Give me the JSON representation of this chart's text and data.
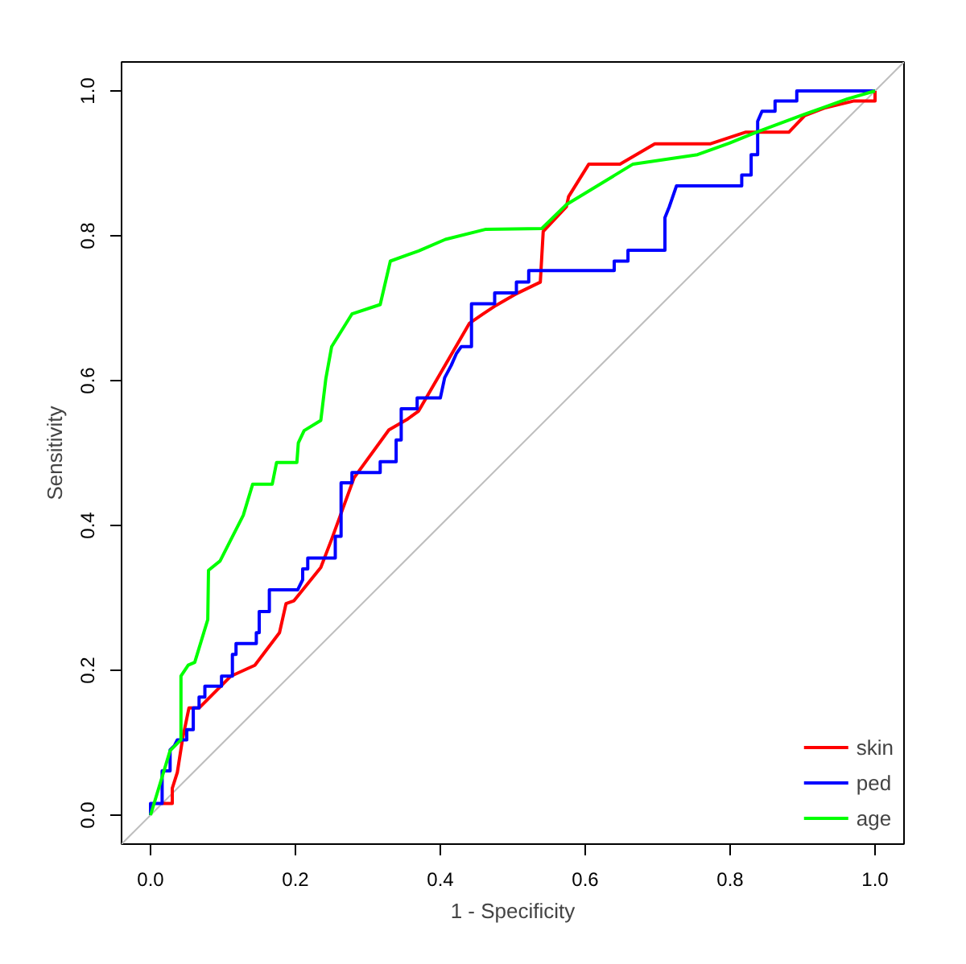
{
  "chart_data": {
    "type": "line",
    "xlabel": "1 - Specificity",
    "ylabel": "Sensitivity",
    "xlim": [
      -0.04,
      1.04
    ],
    "ylim": [
      -0.04,
      1.04
    ],
    "xticks": [
      {
        "value": 0,
        "label": "0.0"
      },
      {
        "value": 0.2,
        "label": "0.2"
      },
      {
        "value": 0.4,
        "label": "0.4"
      },
      {
        "value": 0.6,
        "label": "0.6"
      },
      {
        "value": 0.8,
        "label": "0.8"
      },
      {
        "value": 1,
        "label": "1.0"
      }
    ],
    "yticks": [
      {
        "value": 0,
        "label": "0.0"
      },
      {
        "value": 0.2,
        "label": "0.2"
      },
      {
        "value": 0.4,
        "label": "0.4"
      },
      {
        "value": 0.6,
        "label": "0.6"
      },
      {
        "value": 0.8,
        "label": "0.8"
      },
      {
        "value": 1,
        "label": "1.0"
      }
    ],
    "grid": false,
    "legend": "bottom right",
    "line_style": "solid",
    "marker": "none",
    "series": [
      {
        "color": "#bebebe",
        "x": [
          -0.04,
          1.04
        ],
        "values": [
          -0.04,
          1.04
        ]
      },
      {
        "name": "skin",
        "color": "#ff0000",
        "x": [
          0.016,
          0.03,
          0.03,
          0.037,
          0.044,
          0.053,
          0.067,
          0.111,
          0.144,
          0.178,
          0.187,
          0.198,
          0.235,
          0.25,
          0.281,
          0.329,
          0.355,
          0.37,
          0.44,
          0.459,
          0.477,
          0.503,
          0.538,
          0.542,
          0.574,
          0.577,
          0.605,
          0.648,
          0.696,
          0.773,
          0.821,
          0.881,
          0.903,
          0.932,
          0.97,
          1.0,
          1.0
        ],
        "values": [
          0.016,
          0.016,
          0.037,
          0.059,
          0.104,
          0.148,
          0.148,
          0.192,
          0.207,
          0.252,
          0.292,
          0.296,
          0.342,
          0.381,
          0.466,
          0.532,
          0.547,
          0.558,
          0.679,
          0.692,
          0.704,
          0.719,
          0.736,
          0.806,
          0.84,
          0.854,
          0.899,
          0.899,
          0.927,
          0.927,
          0.943,
          0.943,
          0.966,
          0.977,
          0.986,
          0.986,
          1.0
        ]
      },
      {
        "name": "ped",
        "color": "#0000ff",
        "x": [
          0,
          0,
          0.016,
          0.016,
          0.027,
          0.027,
          0.033,
          0.037,
          0.05,
          0.05,
          0.059,
          0.059,
          0.067,
          0.067,
          0.075,
          0.075,
          0.098,
          0.098,
          0.113,
          0.113,
          0.118,
          0.118,
          0.146,
          0.146,
          0.15,
          0.15,
          0.164,
          0.164,
          0.203,
          0.21,
          0.21,
          0.217,
          0.217,
          0.255,
          0.255,
          0.263,
          0.263,
          0.278,
          0.278,
          0.317,
          0.317,
          0.339,
          0.339,
          0.346,
          0.346,
          0.368,
          0.368,
          0.4,
          0.406,
          0.415,
          0.422,
          0.429,
          0.443,
          0.443,
          0.475,
          0.475,
          0.505,
          0.505,
          0.522,
          0.522,
          0.64,
          0.64,
          0.659,
          0.659,
          0.71,
          0.71,
          0.716,
          0.726,
          0.781,
          0.781,
          0.816,
          0.816,
          0.829,
          0.829,
          0.838,
          0.838,
          0.844,
          0.862,
          0.862,
          0.892,
          0.892,
          1.0
        ],
        "values": [
          0,
          0.016,
          0.016,
          0.061,
          0.061,
          0.09,
          0.096,
          0.104,
          0.104,
          0.118,
          0.118,
          0.148,
          0.148,
          0.163,
          0.163,
          0.178,
          0.178,
          0.192,
          0.192,
          0.222,
          0.222,
          0.237,
          0.237,
          0.252,
          0.252,
          0.281,
          0.281,
          0.311,
          0.311,
          0.325,
          0.34,
          0.34,
          0.355,
          0.355,
          0.385,
          0.385,
          0.459,
          0.459,
          0.473,
          0.473,
          0.488,
          0.488,
          0.518,
          0.518,
          0.561,
          0.561,
          0.576,
          0.576,
          0.604,
          0.621,
          0.637,
          0.647,
          0.647,
          0.706,
          0.706,
          0.721,
          0.721,
          0.736,
          0.736,
          0.752,
          0.752,
          0.765,
          0.765,
          0.78,
          0.78,
          0.825,
          0.84,
          0.869,
          0.869,
          0.869,
          0.869,
          0.884,
          0.884,
          0.912,
          0.912,
          0.958,
          0.972,
          0.972,
          0.986,
          0.986,
          1.0,
          1.0
        ]
      },
      {
        "name": "age",
        "color": "#00ff00",
        "x": [
          0,
          0.027,
          0.042,
          0.042,
          0.052,
          0.061,
          0.079,
          0.08,
          0.096,
          0.128,
          0.141,
          0.168,
          0.174,
          0.202,
          0.204,
          0.212,
          0.235,
          0.242,
          0.25,
          0.278,
          0.317,
          0.331,
          0.37,
          0.407,
          0.463,
          0.54,
          0.574,
          0.666,
          0.755,
          0.799,
          0.836,
          0.903,
          0.962,
          1.0
        ],
        "values": [
          0,
          0.089,
          0.104,
          0.192,
          0.207,
          0.211,
          0.27,
          0.338,
          0.351,
          0.414,
          0.457,
          0.457,
          0.487,
          0.487,
          0.514,
          0.531,
          0.545,
          0.603,
          0.647,
          0.692,
          0.705,
          0.765,
          0.779,
          0.795,
          0.809,
          0.81,
          0.843,
          0.899,
          0.912,
          0.928,
          0.943,
          0.968,
          0.989,
          1.0
        ]
      }
    ]
  }
}
